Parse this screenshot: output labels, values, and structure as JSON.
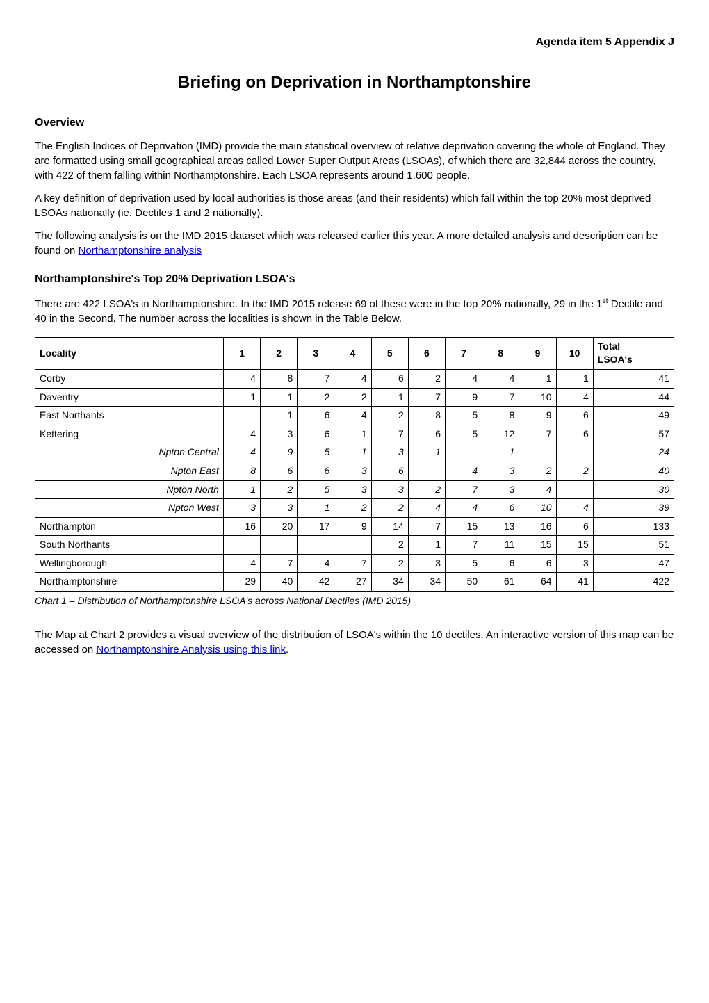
{
  "header_right": "Agenda item 5 Appendix J",
  "title": "Briefing on Deprivation in Northamptonshire",
  "overview": {
    "heading": "Overview",
    "p1": "The English Indices of Deprivation (IMD) provide the main statistical overview of relative deprivation covering the whole of England. They are formatted using small geographical areas called Lower Super Output Areas (LSOAs), of which there are 32,844 across the country, with 422 of them falling within Northamptonshire. Each LSOA represents around 1,600 people.",
    "p2": "A key definition of deprivation used by local authorities is those areas (and their residents) which fall within the top 20% most deprived LSOAs nationally (ie. Dectiles 1 and 2 nationally).",
    "p3_pre": "The following analysis is on the IMD 2015 dataset which was released earlier this year. A more detailed analysis and description can be found on ",
    "p3_link": "Northamptonshire analysis"
  },
  "top20": {
    "heading": "Northamptonshire's Top 20% Deprivation LSOA's",
    "p1_pre": "There are 422 LSOA's in Northamptonshire. In the IMD 2015 release 69 of these were in the top 20% nationally, 29 in the 1",
    "p1_sup": "st",
    "p1_post": " Dectile and 40 in the Second. The number across the localities is shown in the Table Below."
  },
  "table": {
    "columns": [
      "Locality",
      "1",
      "2",
      "3",
      "4",
      "5",
      "6",
      "7",
      "8",
      "9",
      "10",
      "Total LSOA's"
    ],
    "col_widths_pct": [
      28,
      5.5,
      5.5,
      5.5,
      5.5,
      5.5,
      5.5,
      5.5,
      5.5,
      5.5,
      5.5,
      12
    ],
    "header_last_multiline": {
      "line1": "Total",
      "line2": "LSOA's"
    },
    "rows": [
      {
        "label": "Corby",
        "italic": false,
        "indent": false,
        "cells": [
          "4",
          "8",
          "7",
          "4",
          "6",
          "2",
          "4",
          "4",
          "1",
          "1",
          "41"
        ]
      },
      {
        "label": "Daventry",
        "italic": false,
        "indent": false,
        "cells": [
          "1",
          "1",
          "2",
          "2",
          "1",
          "7",
          "9",
          "7",
          "10",
          "4",
          "44"
        ]
      },
      {
        "label": "East Northants",
        "italic": false,
        "indent": false,
        "cells": [
          "",
          "1",
          "6",
          "4",
          "2",
          "8",
          "5",
          "8",
          "9",
          "6",
          "49"
        ]
      },
      {
        "label": "Kettering",
        "italic": false,
        "indent": false,
        "cells": [
          "4",
          "3",
          "6",
          "1",
          "7",
          "6",
          "5",
          "12",
          "7",
          "6",
          "57"
        ]
      },
      {
        "label": "Npton Central",
        "italic": true,
        "indent": true,
        "cells": [
          "4",
          "9",
          "5",
          "1",
          "3",
          "1",
          "",
          "1",
          "",
          "",
          "24"
        ]
      },
      {
        "label": "Npton East",
        "italic": true,
        "indent": true,
        "cells": [
          "8",
          "6",
          "6",
          "3",
          "6",
          "",
          "4",
          "3",
          "2",
          "2",
          "40"
        ]
      },
      {
        "label": "Npton North",
        "italic": true,
        "indent": true,
        "cells": [
          "1",
          "2",
          "5",
          "3",
          "3",
          "2",
          "7",
          "3",
          "4",
          "",
          "30"
        ]
      },
      {
        "label": "Npton West",
        "italic": true,
        "indent": true,
        "cells": [
          "3",
          "3",
          "1",
          "2",
          "2",
          "4",
          "4",
          "6",
          "10",
          "4",
          "39"
        ]
      },
      {
        "label": "Northampton",
        "italic": false,
        "indent": false,
        "cells": [
          "16",
          "20",
          "17",
          "9",
          "14",
          "7",
          "15",
          "13",
          "16",
          "6",
          "133"
        ]
      },
      {
        "label": "South Northants",
        "italic": false,
        "indent": false,
        "cells": [
          "",
          "",
          "",
          "",
          "2",
          "1",
          "7",
          "11",
          "15",
          "15",
          "51"
        ]
      },
      {
        "label": "Wellingborough",
        "italic": false,
        "indent": false,
        "cells": [
          "4",
          "7",
          "4",
          "7",
          "2",
          "3",
          "5",
          "6",
          "6",
          "3",
          "47"
        ]
      },
      {
        "label": "Northamptonshire",
        "italic": false,
        "indent": false,
        "cells": [
          "29",
          "40",
          "42",
          "27",
          "34",
          "34",
          "50",
          "61",
          "64",
          "41",
          "422"
        ]
      }
    ],
    "caption": "Chart 1 – Distribution of Northamptonshire LSOA's across National Dectiles (IMD 2015)"
  },
  "footer": {
    "p1_pre": "The Map at Chart 2 provides a visual overview of the distribution of LSOA's within the 10 dectiles. An interactive version of this map can be accessed on ",
    "p1_link": "Northamptonshire Analysis using this link",
    "p1_post": "."
  },
  "colors": {
    "text": "#000000",
    "background": "#ffffff",
    "link": "#0000EE",
    "border": "#000000"
  }
}
